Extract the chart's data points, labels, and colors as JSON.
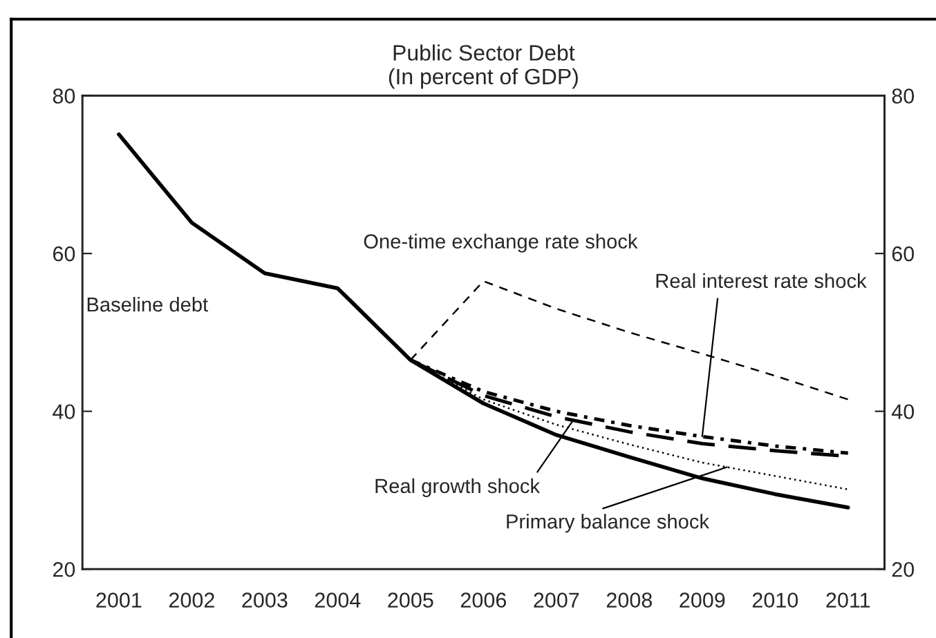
{
  "chart_data": {
    "type": "line",
    "title": "Public Sector Debt\n(In percent of GDP)",
    "categories": [
      "2001",
      "2002",
      "2003",
      "2004",
      "2005",
      "2006",
      "2007",
      "2008",
      "2009",
      "2010",
      "2011"
    ],
    "series": [
      {
        "name": "Baseline debt",
        "color": "#000000",
        "line_style": "solid",
        "values": [
          75.1,
          63.9,
          57.5,
          55.6,
          46.5,
          41.0,
          37.0,
          34.2,
          31.5,
          29.5,
          27.8
        ]
      },
      {
        "name": "One-time exchange rate shock",
        "color": "#000000",
        "line_style": "dashed",
        "values": [
          null,
          null,
          null,
          null,
          46.5,
          56.5,
          53.0,
          50.0,
          47.3,
          44.5,
          41.5
        ]
      },
      {
        "name": "Real interest rate shock",
        "color": "#000000",
        "line_style": "dashed",
        "values": [
          null,
          null,
          null,
          null,
          46.5,
          42.5,
          40.0,
          38.2,
          36.8,
          35.6,
          34.7
        ]
      },
      {
        "name": "Real growth shock",
        "color": "#000000",
        "line_style": "dashed",
        "values": [
          null,
          null,
          null,
          null,
          46.5,
          42.0,
          39.3,
          37.4,
          35.9,
          35.0,
          34.3
        ]
      },
      {
        "name": "Primary balance shock",
        "color": "#000000",
        "line_style": "dotted",
        "values": [
          null,
          null,
          null,
          null,
          46.5,
          41.5,
          38.3,
          35.8,
          33.5,
          31.8,
          30.1
        ]
      }
    ],
    "ylim": [
      20,
      80
    ],
    "yticks": [
      20,
      40,
      60,
      80
    ],
    "y2lim": [
      20,
      80
    ],
    "y2ticks": [
      20,
      40,
      60,
      80
    ],
    "grid": false,
    "legend": false
  }
}
